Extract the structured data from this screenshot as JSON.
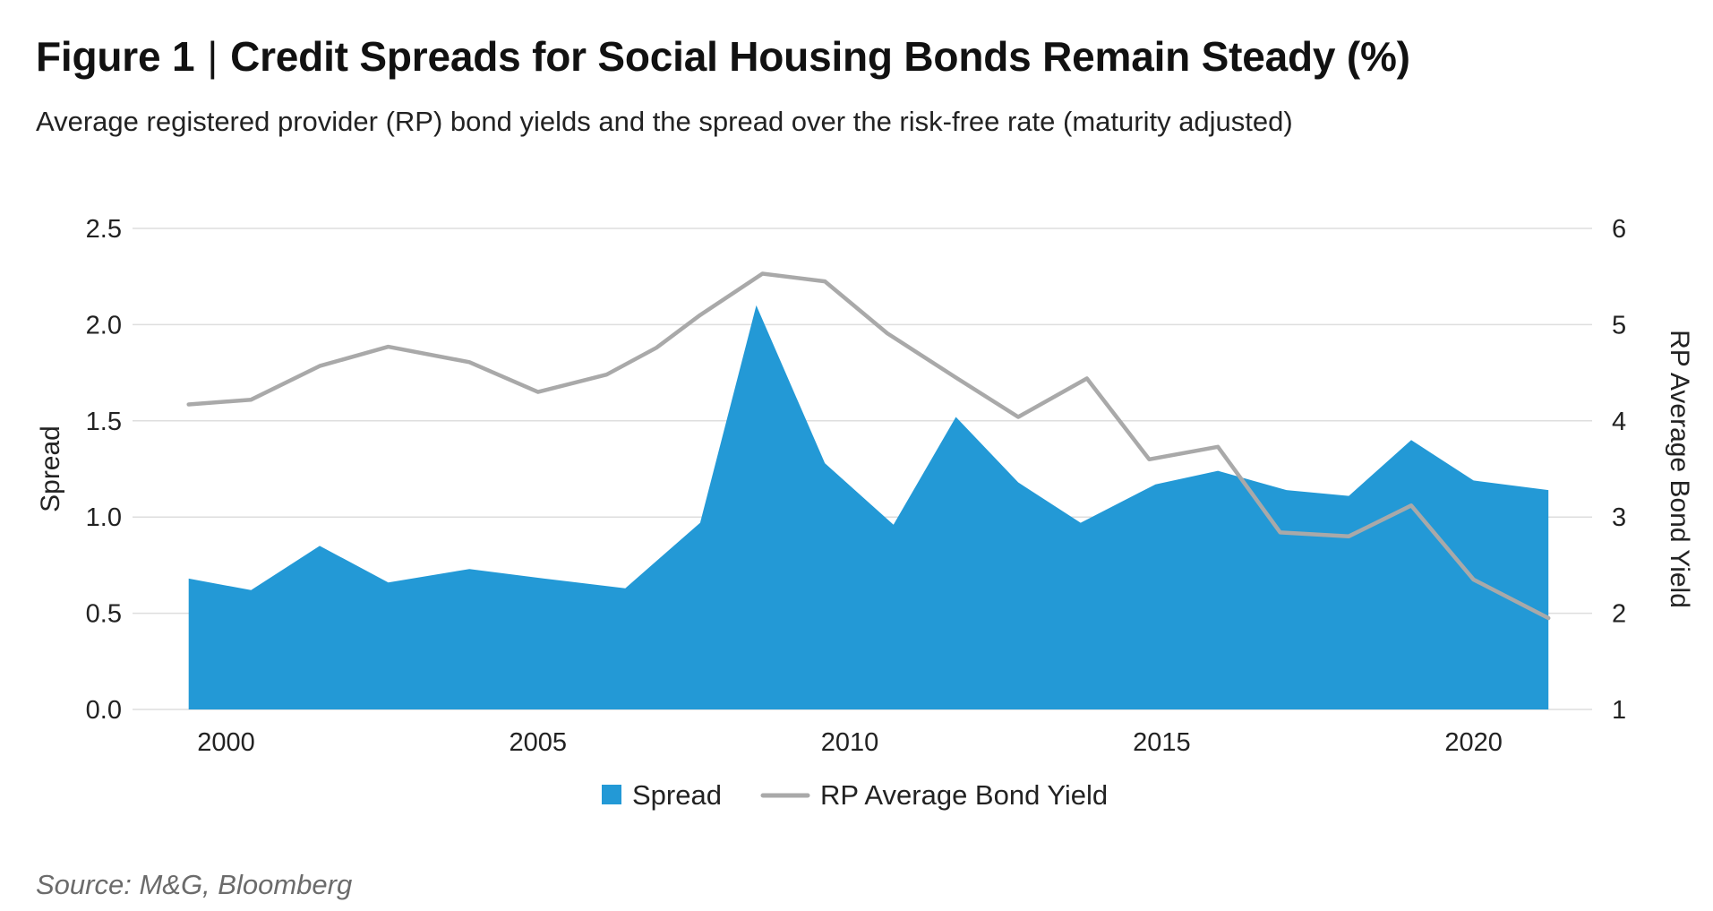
{
  "header": {
    "figure_label": "Figure 1",
    "separator": "|",
    "title": "Credit Spreads for Social Housing Bonds Remain Steady (%)",
    "subtitle": "Average registered provider (RP) bond yields and the spread over the risk-free rate (maturity adjusted)"
  },
  "footer": {
    "source": "Source: M&G, Bloomberg"
  },
  "chart_data": {
    "type": "area",
    "grid": "horizontal",
    "legend_position": "bottom-center",
    "x_ticks": [
      2000,
      2005,
      2010,
      2015,
      2020
    ],
    "xlim": [
      1998.5,
      2021.9
    ],
    "y_left": {
      "label": "Spread",
      "ylim": [
        0,
        2.5
      ],
      "ticks": [
        "0.0",
        "0.5",
        "1.0",
        "1.5",
        "2.0",
        "2.5"
      ]
    },
    "y_right": {
      "label": "RP Average Bond Yield",
      "ylim": [
        1,
        6
      ],
      "ticks": [
        "1",
        "2",
        "3",
        "4",
        "5",
        "6"
      ]
    },
    "series": [
      {
        "name": "Spread",
        "type": "area",
        "axis": "left",
        "color": "#2399d6",
        "points": [
          [
            1999.4,
            0.68
          ],
          [
            2000.4,
            0.62
          ],
          [
            2001.5,
            0.85
          ],
          [
            2002.6,
            0.66
          ],
          [
            2003.9,
            0.73
          ],
          [
            2005.1,
            0.68
          ],
          [
            2006.4,
            0.63
          ],
          [
            2007.6,
            0.97
          ],
          [
            2008.5,
            2.1
          ],
          [
            2009.6,
            1.28
          ],
          [
            2010.7,
            0.96
          ],
          [
            2011.7,
            1.52
          ],
          [
            2012.7,
            1.18
          ],
          [
            2013.7,
            0.97
          ],
          [
            2014.9,
            1.17
          ],
          [
            2015.9,
            1.24
          ],
          [
            2017.0,
            1.14
          ],
          [
            2018.0,
            1.11
          ],
          [
            2019.0,
            1.4
          ],
          [
            2020.0,
            1.19
          ],
          [
            2021.2,
            1.14
          ]
        ]
      },
      {
        "name": "RP Average Bond Yield",
        "type": "line",
        "axis": "right",
        "color": "#a9a9a9",
        "points": [
          [
            1999.4,
            4.17
          ],
          [
            2000.4,
            4.22
          ],
          [
            2001.5,
            4.57
          ],
          [
            2002.6,
            4.77
          ],
          [
            2003.9,
            4.61
          ],
          [
            2005.0,
            4.3
          ],
          [
            2006.1,
            4.48
          ],
          [
            2006.9,
            4.76
          ],
          [
            2007.6,
            5.1
          ],
          [
            2008.6,
            5.53
          ],
          [
            2009.6,
            5.45
          ],
          [
            2010.6,
            4.91
          ],
          [
            2011.7,
            4.45
          ],
          [
            2012.7,
            4.04
          ],
          [
            2013.8,
            4.44
          ],
          [
            2014.8,
            3.6
          ],
          [
            2015.9,
            3.73
          ],
          [
            2016.9,
            2.84
          ],
          [
            2018.0,
            2.8
          ],
          [
            2019.0,
            3.12
          ],
          [
            2020.0,
            2.35
          ],
          [
            2021.2,
            1.95
          ]
        ]
      }
    ]
  }
}
